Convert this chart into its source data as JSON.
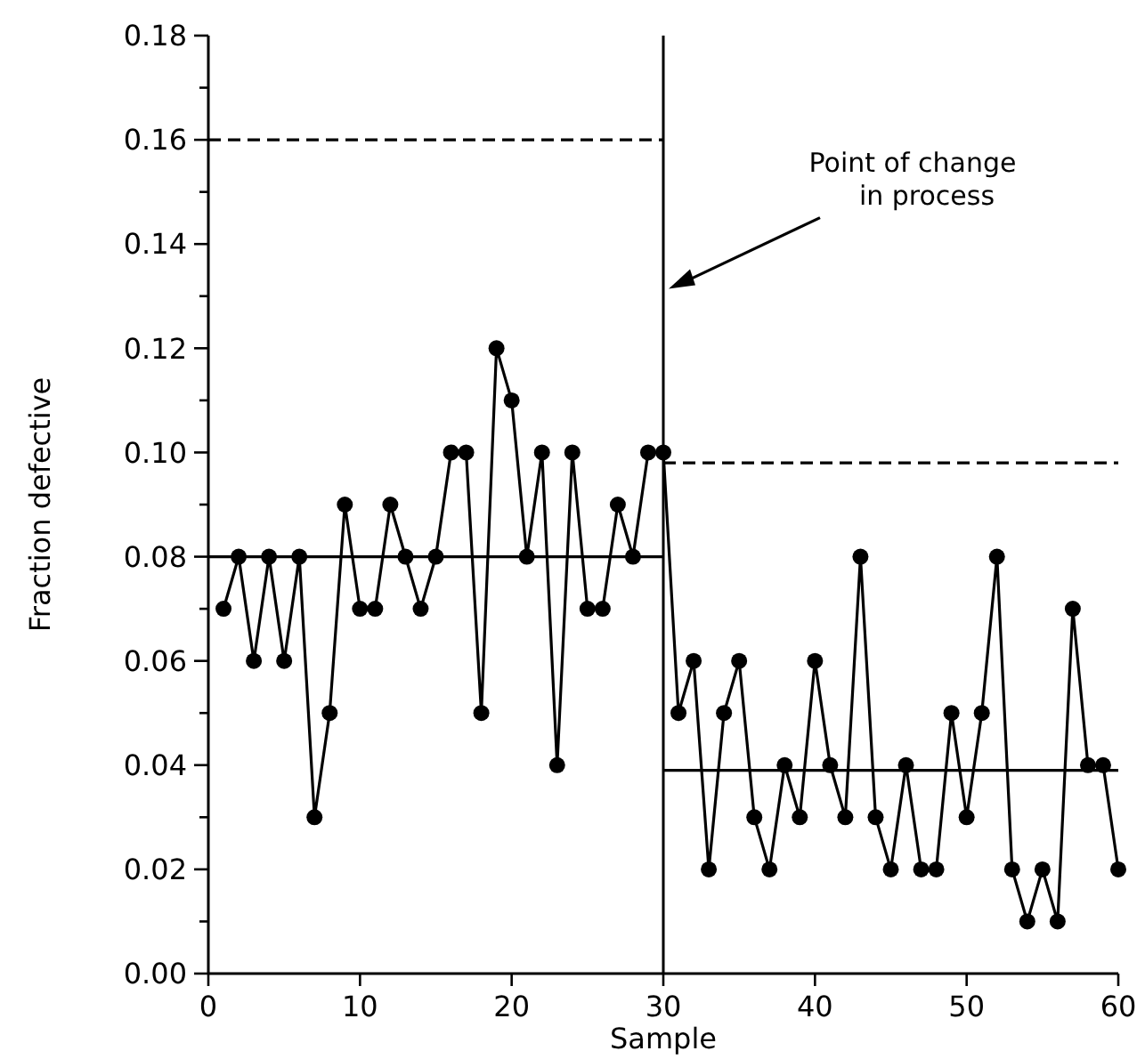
{
  "chart_data": {
    "type": "line",
    "xlabel": "Sample",
    "ylabel": "Fraction defective",
    "xlim": [
      0,
      60
    ],
    "xticks": [
      0,
      10,
      20,
      30,
      40,
      50,
      60
    ],
    "ylim": [
      0,
      0.18
    ],
    "yticks": [
      {
        "value": 0,
        "label": "0.00"
      },
      {
        "value": 0.01,
        "label": null
      },
      {
        "value": 0.02,
        "label": "0.02"
      },
      {
        "value": 0.03,
        "label": null
      },
      {
        "value": 0.04,
        "label": "0.04"
      },
      {
        "value": 0.05,
        "label": null
      },
      {
        "value": 0.06,
        "label": "0.06"
      },
      {
        "value": 0.07,
        "label": null
      },
      {
        "value": 0.08,
        "label": "0.08"
      },
      {
        "value": 0.09,
        "label": null
      },
      {
        "value": 0.1,
        "label": "0.10"
      },
      {
        "value": 0.11,
        "label": null
      },
      {
        "value": 0.12,
        "label": "0.12"
      },
      {
        "value": 0.13,
        "label": null
      },
      {
        "value": 0.14,
        "label": "0.14"
      },
      {
        "value": 0.15,
        "label": null
      },
      {
        "value": 0.16,
        "label": "0.16"
      },
      {
        "value": 0.17,
        "label": null
      },
      {
        "value": 0.18,
        "label": "0.18"
      }
    ],
    "grid": false,
    "series": [
      {
        "color": "#000000",
        "marker": "circle",
        "line_style": "solid",
        "x": [
          1,
          2,
          3,
          4,
          5,
          6,
          7,
          8,
          9,
          10,
          11,
          12,
          13,
          14,
          15,
          16,
          17,
          18,
          19,
          20,
          21,
          22,
          23,
          24,
          25,
          26,
          27,
          28,
          29,
          30,
          31,
          32,
          33,
          34,
          35,
          36,
          37,
          38,
          39,
          40,
          41,
          42,
          43,
          44,
          45,
          46,
          47,
          48,
          49,
          50,
          51,
          52,
          53,
          54,
          55,
          56,
          57,
          58,
          59,
          60
        ],
        "values": [
          0.07,
          0.08,
          0.06,
          0.08,
          0.06,
          0.08,
          0.03,
          0.05,
          0.09,
          0.07,
          0.07,
          0.09,
          0.08,
          0.07,
          0.08,
          0.1,
          0.1,
          0.05,
          0.12,
          0.11,
          0.08,
          0.1,
          0.04,
          0.1,
          0.07,
          0.07,
          0.09,
          0.08,
          0.1,
          0.1,
          0.05,
          0.06,
          0.02,
          0.05,
          0.06,
          0.03,
          0.02,
          0.04,
          0.03,
          0.06,
          0.04,
          0.03,
          0.08,
          0.03,
          0.02,
          0.04,
          0.02,
          0.02,
          0.05,
          0.03,
          0.05,
          0.08,
          0.02,
          0.01,
          0.02,
          0.01,
          0.07,
          0.04,
          0.04,
          0.02
        ]
      },
      {
        "color": "#000000",
        "marker": "none",
        "line_style": "solid",
        "x": [
          0,
          30
        ],
        "values": [
          0.08,
          0.08
        ]
      },
      {
        "color": "#000000",
        "marker": "none",
        "line_style": "dashed",
        "x": [
          0,
          30
        ],
        "values": [
          0.16,
          0.16
        ]
      },
      {
        "color": "#000000",
        "marker": "none",
        "line_style": "solid",
        "x": [
          30,
          60
        ],
        "values": [
          0.039,
          0.039
        ]
      },
      {
        "color": "#000000",
        "marker": "none",
        "line_style": "dashed",
        "x": [
          30,
          60
        ],
        "values": [
          0.098,
          0.098
        ]
      }
    ],
    "ref_lines": [
      {
        "axis": "x",
        "value": 30,
        "color": "#000000",
        "line_style": "solid"
      }
    ],
    "annotations": [
      "Point of change\nin process"
    ]
  }
}
